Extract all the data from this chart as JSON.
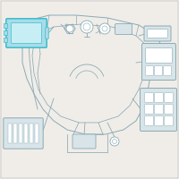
{
  "bg_color": "#f0ede8",
  "line_color": "#8aaab5",
  "highlight_edge": "#3bbdcc",
  "highlight_fill": "#a8dce8",
  "highlight_fill2": "#c8eef5",
  "comp_fill": "#d8e4e8",
  "comp_edge": "#8aaab5",
  "white": "#ffffff",
  "figsize": [
    2.0,
    2.0
  ],
  "dpi": 100
}
